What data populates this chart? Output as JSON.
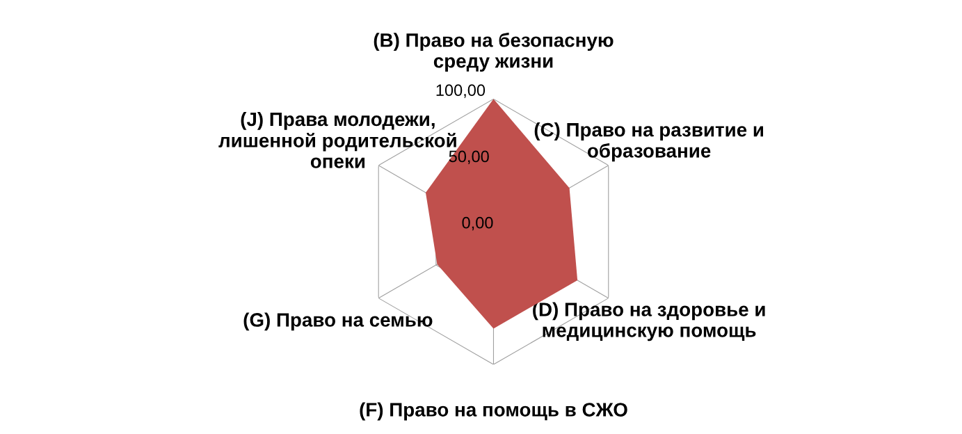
{
  "chart_data": {
    "type": "radar",
    "categories": [
      "(B) Право на безопасную\nсреду жизни",
      "(C) Право на развитие и\nобразование",
      "(D) Право на здоровье и\nмедицинскую помощь",
      "(F) Право на помощь в СЖО",
      "(G) Право на семью",
      "(J) Права молодежи,\nлишенной родительской\nопеки"
    ],
    "series": [
      {
        "color": "#c0504d",
        "values": [
          100,
          66,
          73,
          73,
          49,
          59
        ]
      }
    ],
    "ylim": [
      0,
      100
    ],
    "yticks": [
      {
        "value": 0,
        "label": "0,00"
      },
      {
        "value": 50,
        "label": "50,00"
      },
      {
        "value": 100,
        "label": "100,00"
      }
    ],
    "grid": true,
    "legend": false
  }
}
